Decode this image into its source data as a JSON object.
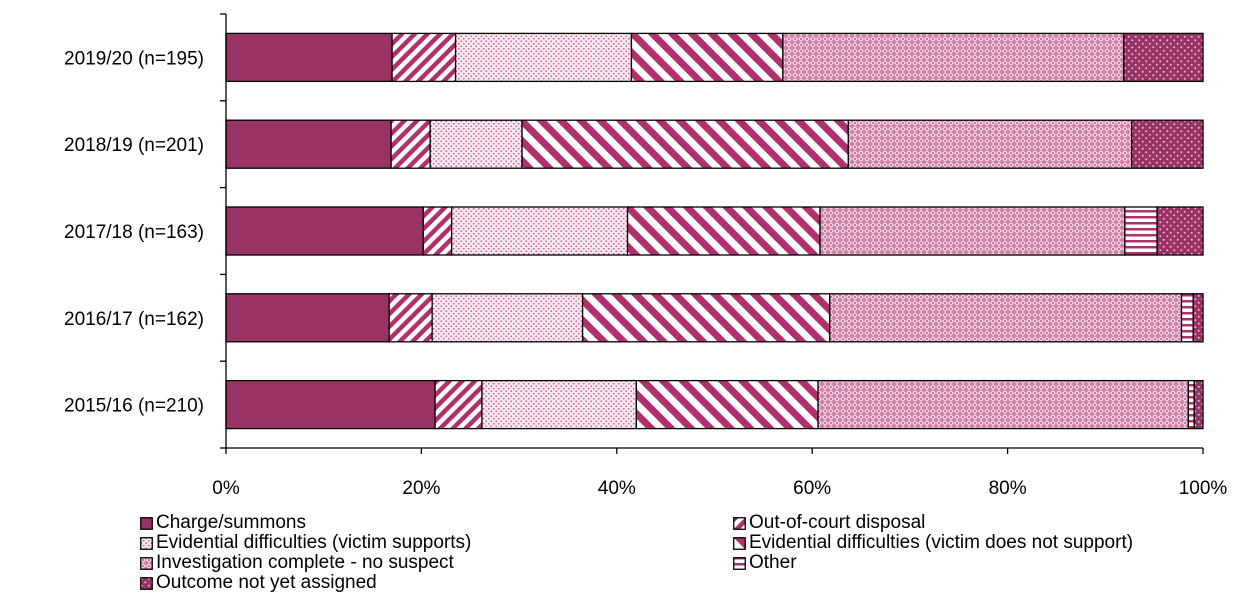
{
  "chart_data": {
    "type": "bar",
    "orientation": "horizontal",
    "stacked": "percent",
    "categories": [
      "2019/20 (n=195)",
      "2018/19 (n=201)",
      "2017/18 (n=163)",
      "2016/17 (n=162)",
      "2015/16 (n=210)"
    ],
    "xlim": [
      0,
      100
    ],
    "x_ticks": [
      "0%",
      "20%",
      "40%",
      "60%",
      "80%",
      "100%"
    ],
    "legend_position": "bottom",
    "grid": false,
    "series": [
      {
        "name": "Charge/summons",
        "color": "#993366",
        "pattern": "solid",
        "values": [
          17.0,
          16.9,
          20.2,
          16.7,
          21.4
        ]
      },
      {
        "name": "Out-of-court disposal",
        "color": "#993366",
        "pattern": "diagonal-stripes",
        "values": [
          6.5,
          4.0,
          2.9,
          4.4,
          4.8
        ]
      },
      {
        "name": "Evidential difficulties (victim supports)",
        "color": "#cc6699",
        "pattern": "fine-dots",
        "values": [
          18.0,
          9.4,
          18.0,
          15.4,
          15.8
        ]
      },
      {
        "name": "Evidential difficulties (victim does not support)",
        "color": "#b0306e",
        "pattern": "wide-diagonal-stripes",
        "values": [
          15.5,
          33.4,
          19.7,
          25.3,
          18.6
        ]
      },
      {
        "name": "Investigation complete - no suspect",
        "color": "#cc6699",
        "pattern": "diamond-grid",
        "values": [
          34.9,
          29.0,
          31.2,
          36.0,
          37.9
        ]
      },
      {
        "name": "Other",
        "color": "#b0306e",
        "pattern": "horizontal-stripes",
        "values": [
          0.0,
          0.0,
          3.3,
          1.2,
          0.6
        ]
      },
      {
        "name": "Outcome not yet assigned",
        "color": "#993366",
        "pattern": "dotted-dark",
        "values": [
          8.1,
          7.3,
          4.7,
          1.0,
          0.9
        ]
      }
    ]
  }
}
